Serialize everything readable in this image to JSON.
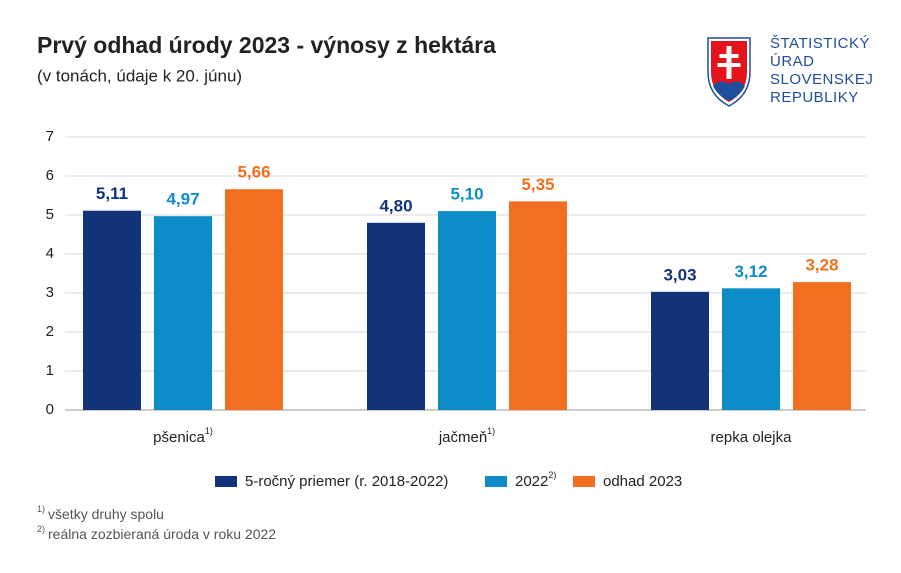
{
  "chart_data": {
    "type": "bar",
    "title": "Prvý odhad úrody 2023 - výnosy z hektára",
    "subtitle": "(v tonách, údaje k 20. júnu)",
    "categories": [
      "pšenica",
      "jačmeň",
      "repka olejka"
    ],
    "category_notes": [
      "1)",
      "1)",
      null
    ],
    "series": [
      {
        "name": "5-ročný priemer (r. 2018-2022)",
        "color": "#12337a",
        "values": [
          5.11,
          4.8,
          3.03
        ],
        "value_labels": [
          "5,11",
          "4,80",
          "3,03"
        ]
      },
      {
        "name": "2022",
        "note": "2)",
        "color": "#0e8cc7",
        "values": [
          4.97,
          5.1,
          3.12
        ],
        "value_labels": [
          "4,97",
          "5,10",
          "3,12"
        ]
      },
      {
        "name": "odhad 2023",
        "color": "#f26f21",
        "values": [
          5.66,
          5.35,
          3.28
        ],
        "value_labels": [
          "5,66",
          "5,35",
          "3,28"
        ]
      }
    ],
    "ylim": [
      0,
      7
    ],
    "yticks": [
      0,
      1,
      2,
      3,
      4,
      5,
      6,
      7
    ],
    "grid": true,
    "legend": "bottom"
  },
  "footnotes": [
    {
      "mark": "1)",
      "text": "všetky druhy spolu"
    },
    {
      "mark": "2)",
      "text": "reálna zozbieraná úroda v roku 2022"
    }
  ],
  "logo": {
    "lines": [
      "ŠTATISTICKÝ",
      "ÚRAD",
      "SLOVENSKEJ",
      "REPUBLIKY"
    ]
  }
}
